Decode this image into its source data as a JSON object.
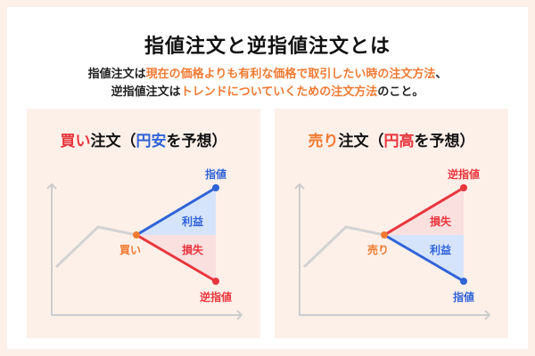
{
  "title": "指値注文と逆指値注文とは",
  "desc": {
    "line1": {
      "pre": "指値注文は",
      "highlight": "現在の価格よりも有利な価格で取引したい時の注文方法",
      "post": "、"
    },
    "line2": {
      "pre": "逆指値注文は",
      "highlight": "トレンドについていくための注文方法",
      "post": "のこと。"
    }
  },
  "left_panel": {
    "title": {
      "a": "買い",
      "b": "注文（",
      "c": "円安",
      "d": "を予想）"
    },
    "labels": {
      "limit": "指値",
      "profit": "利益",
      "entry": "買い",
      "loss": "損失",
      "stop": "逆指値"
    }
  },
  "right_panel": {
    "title": {
      "a": "売り",
      "b": "注文（",
      "c": "円高",
      "d": "を予想）"
    },
    "labels": {
      "stop": "逆指値",
      "loss": "損失",
      "entry": "売り",
      "profit": "利益",
      "limit": "指値"
    }
  },
  "colors": {
    "background": "#fdf0e9",
    "accent_orange": "#f07a32",
    "blue": "#2f63d8",
    "red": "#e8353d",
    "profit_fill": "#d6e4fb",
    "loss_fill": "#fbe0e0",
    "axis": "#cccccc"
  }
}
